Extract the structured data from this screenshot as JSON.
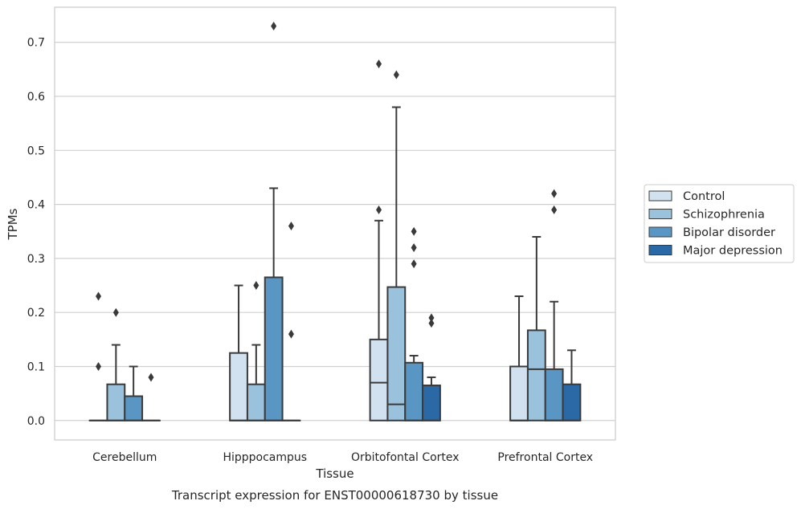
{
  "chart_data": {
    "type": "boxplot",
    "title": "Transcript expression for ENST00000618730 by tissue",
    "xlabel": "Tissue",
    "ylabel": "TPMs",
    "ylim": [
      -0.036,
      0.765
    ],
    "yticks": [
      "0.0",
      "0.1",
      "0.2",
      "0.3",
      "0.4",
      "0.5",
      "0.6",
      "0.7"
    ],
    "grid": true,
    "legend_position": "right",
    "categories": [
      "Cerebellum",
      "Hipppocampus",
      "Orbitofontal Cortex",
      "Prefrontal Cortex"
    ],
    "series": [
      {
        "name": "Control",
        "color": "#d2e1f0",
        "boxes": [
          {
            "q1": 0,
            "median": 0,
            "q3": 0,
            "whisker_low": 0,
            "whisker_high": 0,
            "outliers": [
              0.1,
              0.23
            ]
          },
          {
            "q1": 0,
            "median": 0,
            "q3": 0.125,
            "whisker_low": 0,
            "whisker_high": 0.25,
            "outliers": []
          },
          {
            "q1": 0,
            "median": 0.07,
            "q3": 0.15,
            "whisker_low": 0,
            "whisker_high": 0.37,
            "outliers": [
              0.39,
              0.66
            ]
          },
          {
            "q1": 0,
            "median": 0,
            "q3": 0.1,
            "whisker_low": 0,
            "whisker_high": 0.23,
            "outliers": []
          }
        ]
      },
      {
        "name": "Schizophrenia",
        "color": "#9ac2dc",
        "boxes": [
          {
            "q1": 0,
            "median": 0,
            "q3": 0.067,
            "whisker_low": 0,
            "whisker_high": 0.14,
            "outliers": [
              0.2
            ]
          },
          {
            "q1": 0,
            "median": 0,
            "q3": 0.067,
            "whisker_low": 0,
            "whisker_high": 0.14,
            "outliers": [
              0.25
            ]
          },
          {
            "q1": 0,
            "median": 0.03,
            "q3": 0.247,
            "whisker_low": 0,
            "whisker_high": 0.58,
            "outliers": [
              0.64
            ]
          },
          {
            "q1": 0,
            "median": 0.095,
            "q3": 0.167,
            "whisker_low": 0,
            "whisker_high": 0.34,
            "outliers": []
          }
        ]
      },
      {
        "name": "Bipolar disorder",
        "color": "#5996c3",
        "boxes": [
          {
            "q1": 0,
            "median": 0,
            "q3": 0.045,
            "whisker_low": 0,
            "whisker_high": 0.1,
            "outliers": []
          },
          {
            "q1": 0,
            "median": 0,
            "q3": 0.265,
            "whisker_low": 0,
            "whisker_high": 0.43,
            "outliers": [
              0.73
            ]
          },
          {
            "q1": 0,
            "median": 0,
            "q3": 0.107,
            "whisker_low": 0,
            "whisker_high": 0.12,
            "outliers": [
              0.29,
              0.32,
              0.35
            ]
          },
          {
            "q1": 0,
            "median": 0,
            "q3": 0.095,
            "whisker_low": 0,
            "whisker_high": 0.22,
            "outliers": [
              0.39,
              0.42
            ]
          }
        ]
      },
      {
        "name": "Major depression",
        "color": "#2a68a6",
        "boxes": [
          {
            "q1": 0,
            "median": 0,
            "q3": 0,
            "whisker_low": 0,
            "whisker_high": 0,
            "outliers": [
              0.08
            ]
          },
          {
            "q1": 0,
            "median": 0,
            "q3": 0,
            "whisker_low": 0,
            "whisker_high": 0,
            "outliers": [
              0.16,
              0.36
            ]
          },
          {
            "q1": 0,
            "median": 0,
            "q3": 0.065,
            "whisker_low": 0,
            "whisker_high": 0.08,
            "outliers": [
              0.18,
              0.19
            ]
          },
          {
            "q1": 0,
            "median": 0,
            "q3": 0.067,
            "whisker_low": 0,
            "whisker_high": 0.13,
            "outliers": []
          }
        ]
      }
    ]
  }
}
